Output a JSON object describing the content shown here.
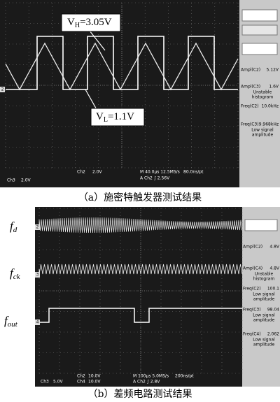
{
  "panel_a": {
    "channel_markers": [
      "2"
    ],
    "annotations": [
      {
        "symbol": "V",
        "subscript": "H",
        "value": "=3.05V"
      },
      {
        "symbol": "V",
        "subscript": "L",
        "value": "=1.1V"
      }
    ],
    "measurements": [
      {
        "label": "Ampl(C2)",
        "value": "5.12V"
      },
      {
        "label": "Ampl(C3)",
        "value": "1.6V",
        "note": [
          "Unstable",
          "histogram"
        ]
      },
      {
        "label": "Freq(C2)",
        "value": "10.0kHz"
      },
      {
        "label": "Freq(C3)",
        "value": "9.968kHz",
        "note": [
          "Low signal",
          "amplitude"
        ]
      }
    ],
    "status": [
      "Ch3",
      "2.0V",
      "Ch2",
      "2.0V",
      "M 40.0µs 12.5MS/s",
      "80.0ns/pt",
      "A  Ch2  ∫  2.56V"
    ],
    "caption": "（a）施密特触发器测试结果"
  },
  "panel_b": {
    "signal_labels": [
      {
        "symbol": "f",
        "subscript": "d"
      },
      {
        "symbol": "f",
        "subscript": "ck"
      },
      {
        "symbol": "f",
        "subscript": "out"
      }
    ],
    "channel_markers": [
      "2",
      "3",
      "4"
    ],
    "measurements": [
      {
        "label": "Ampl(C2)",
        "value": "4.8V"
      },
      {
        "label": "Ampl(C4)",
        "value": "4.8V",
        "note": [
          "Unstable",
          "histogram"
        ]
      },
      {
        "label": "Freq(C2)",
        "value": "100.1",
        "note": [
          "Low signal",
          "amplitude"
        ]
      },
      {
        "label": "Freq(C3)",
        "value": "98.04",
        "note": [
          "Low signal",
          "amplitude"
        ]
      },
      {
        "label": "Freq(C4)",
        "value": "2.062",
        "note": [
          "Low signal",
          "amplitude"
        ]
      }
    ],
    "status": [
      "Ch3",
      "5.0V",
      "Ch2",
      "10.0V",
      "Ch4",
      "10.0V",
      "M 100µs 5.0MS/s",
      "200ns/pt",
      "A  Ch2  ∫  2.8V"
    ],
    "caption": "（b）差频电路测试结果"
  }
}
